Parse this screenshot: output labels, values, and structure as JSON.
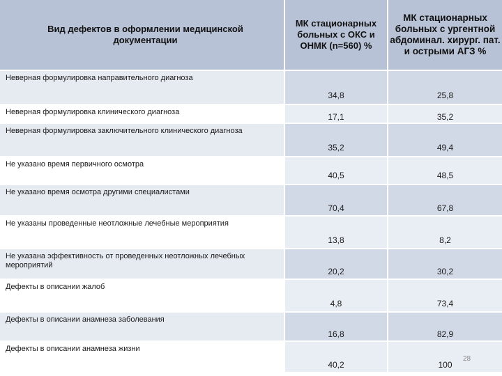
{
  "table": {
    "headers": [
      "Вид дефектов в оформлении медицинской документации",
      "МК стационарных больных с ОКС и ОНМК (n=560) %",
      "МК стационарных больных с ургентной абдоминал. хирург. пат. и острыми АГЗ %"
    ],
    "rows": [
      {
        "label": "Неверная формулировка направительного диагноза",
        "oks": "34,8",
        "agz": "25,8"
      },
      {
        "label": "Неверная формулировка клинического диагноза",
        "oks": "17,1",
        "agz": "35,2"
      },
      {
        "label": "Неверная формулировка заключительного клинического диагноза",
        "oks": "35,2",
        "agz": "49,4"
      },
      {
        "label": "Не указано время первичного осмотра",
        "oks": "40,5",
        "agz": "48,5"
      },
      {
        "label": "Не указано время осмотра другими специалистами",
        "oks": "70,4",
        "agz": "67,8"
      },
      {
        "label": "Не указаны проведенные неотложные лечебные мероприятия",
        "oks": "13,8",
        "agz": "8,2"
      },
      {
        "label": "Не указана эффективность от проведенных неотложных лечебных мероприятий",
        "oks": "20,2",
        "agz": "30,2"
      },
      {
        "label": "Дефекты в описании жалоб",
        "oks": "4,8",
        "agz": "73,4"
      },
      {
        "label": "Дефекты в описании анамнеза заболевания",
        "oks": "16,8",
        "agz": "82,9"
      },
      {
        "label": "Дефекты в описании анамнеза жизни",
        "oks": "40,2",
        "agz": "100"
      }
    ]
  },
  "slide_number": "28"
}
